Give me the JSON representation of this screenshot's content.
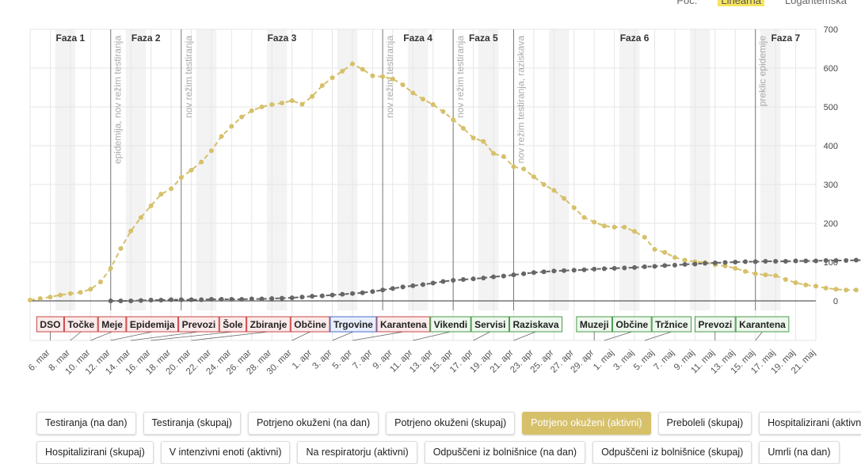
{
  "scale_switch": [
    "Poč.",
    "Linearna",
    "Logaritemska"
  ],
  "scale_active": 1,
  "buttons_row1": [
    "Testiranja (na dan)",
    "Testiranja (skupaj)",
    "Potrjeno okuženi (na dan)",
    "Potrjeno okuženi (skupaj)",
    "Potrjeno okuženi (aktivni)",
    "Preboleli (skupaj)",
    "Hospitalizirani (aktivni)"
  ],
  "buttons_row2": [
    "Hospitalizirani (skupaj)",
    "V intenzivni enoti (aktivni)",
    "Na respiratorju (aktivni)",
    "Odpuščeni iz bolnišnice (na dan)",
    "Odpuščeni iz bolnišnice (skupaj)",
    "Umrli (na dan)"
  ],
  "active_button": "Potrjeno okuženi (aktivni)",
  "colors": {
    "active": "#d6c06a",
    "recovered": "#666666",
    "grid": "#e6e6e6",
    "band": "#f3f3f3"
  },
  "chart_data": {
    "type": "line",
    "x_start": "2020-03-04",
    "x_end": "2020-05-21",
    "ylim": [
      0,
      700
    ],
    "y_ticks": [
      0,
      100,
      200,
      300,
      400,
      500,
      600,
      700
    ],
    "x_tick_labels": [
      "6. mar",
      "8. mar",
      "10. mar",
      "12. mar",
      "14. mar",
      "16. mar",
      "18. mar",
      "20. mar",
      "22. mar",
      "24. mar",
      "26. mar",
      "28. mar",
      "30. mar",
      "1. apr",
      "3. apr",
      "5. apr",
      "7. apr",
      "9. apr",
      "11. apr",
      "13. apr",
      "15. apr",
      "17. apr",
      "19. apr",
      "21. apr",
      "23. apr",
      "25. apr",
      "27. apr",
      "29. apr",
      "1. maj",
      "3. maj",
      "5. maj",
      "7. maj",
      "9. maj",
      "11. maj",
      "13. maj",
      "15. maj",
      "17. maj",
      "19. maj",
      "21. maj"
    ],
    "phases": [
      {
        "label": "Faza 1",
        "start": "2020-03-04",
        "end": "2020-03-12"
      },
      {
        "label": "Faza 2",
        "start": "2020-03-12",
        "end": "2020-03-19"
      },
      {
        "label": "Faza 3",
        "start": "2020-03-19",
        "end": "2020-04-08"
      },
      {
        "label": "Faza 4",
        "start": "2020-04-08",
        "end": "2020-04-15"
      },
      {
        "label": "Faza 5",
        "start": "2020-04-15",
        "end": "2020-04-21"
      },
      {
        "label": "Faza 6",
        "start": "2020-04-21",
        "end": "2020-05-15"
      },
      {
        "label": "Faza 7",
        "start": "2020-05-15",
        "end": "2020-05-21"
      }
    ],
    "phase_annotations": [
      {
        "date": "2020-03-12",
        "text": "epidemija, nov režim testiranja"
      },
      {
        "date": "2020-03-19",
        "text": "nov režim testiranja"
      },
      {
        "date": "2020-04-08",
        "text": "nov režim testiranja"
      },
      {
        "date": "2020-04-15",
        "text": "nov režim testiranja"
      },
      {
        "date": "2020-04-21",
        "text": "nov režim testiranja, raziskava"
      },
      {
        "date": "2020-05-15",
        "text": "preklic epidemije"
      }
    ],
    "measures": [
      {
        "label": "DSO",
        "date": "2020-03-06",
        "row": 0
      },
      {
        "label": "Točke",
        "date": "2020-03-08",
        "row": 0
      },
      {
        "label": "Meje",
        "date": "2020-03-10",
        "row": 0
      },
      {
        "label": "Epidemija",
        "date": "2020-03-12",
        "row": 0
      },
      {
        "label": "Prevozi",
        "date": "2020-03-14",
        "row": 0
      },
      {
        "label": "Šole",
        "date": "2020-03-16",
        "row": 0
      },
      {
        "label": "Zbiranje",
        "date": "2020-03-20",
        "row": 0
      },
      {
        "label": "Občine",
        "date": "2020-03-30",
        "row": 0
      },
      {
        "label": "Trgovine",
        "date": "2020-04-03",
        "row": 0
      },
      {
        "label": "Karantena",
        "date": "2020-04-05",
        "row": 0
      },
      {
        "label": "Vikendi",
        "date": "2020-04-11",
        "row": 0
      },
      {
        "label": "Servisi",
        "date": "2020-04-17",
        "row": 0
      },
      {
        "label": "Raziskava",
        "date": "2020-04-21",
        "row": 0
      },
      {
        "label": "Muzeji",
        "date": "2020-04-29",
        "row": 0
      },
      {
        "label": "Občine",
        "date": "2020-04-30",
        "row": 0
      },
      {
        "label": "Tržnice",
        "date": "2020-05-04",
        "row": 0
      },
      {
        "label": "Prevozi",
        "date": "2020-05-11",
        "row": 0
      },
      {
        "label": "Karantena",
        "date": "2020-05-15",
        "row": 0
      }
    ],
    "series": [
      {
        "name": "Potrjeno okuženi (aktivni)",
        "start": "2020-03-04",
        "values": [
          2,
          6,
          10,
          15,
          19,
          22,
          30,
          49,
          84,
          135,
          180,
          215,
          245,
          275,
          289,
          318,
          337,
          358,
          387,
          424,
          450,
          474,
          490,
          500,
          506,
          510,
          516,
          507,
          527,
          555,
          575,
          592,
          611,
          597,
          580,
          578,
          572,
          557,
          536,
          520,
          506,
          488,
          467,
          445,
          420,
          411,
          380,
          372,
          346,
          340,
          320,
          300,
          285,
          264,
          240,
          215,
          203,
          193,
          190,
          190,
          179,
          164,
          133,
          125,
          112,
          105,
          101,
          99,
          93,
          90,
          84,
          76,
          70,
          67,
          65,
          55,
          47,
          41,
          38,
          33,
          30,
          28,
          28,
          27,
          25
        ]
      },
      {
        "name": "Preboleli (skupaj)",
        "start": "2020-03-12",
        "values": [
          0,
          0,
          0,
          1,
          2,
          2,
          3,
          3,
          3,
          3,
          4,
          4,
          4,
          4,
          5,
          5,
          6,
          7,
          8,
          10,
          12,
          13,
          15,
          17,
          19,
          21,
          24,
          28,
          32,
          36,
          39,
          42,
          46,
          50,
          53,
          55,
          57,
          59,
          62,
          64,
          67,
          70,
          73,
          75,
          77,
          78,
          79,
          80,
          82,
          83,
          84,
          85,
          86,
          88,
          89,
          91,
          92,
          94,
          95,
          97,
          98,
          99,
          100,
          101,
          101,
          102,
          102,
          102,
          103,
          103,
          103,
          104,
          104,
          104,
          105,
          105,
          105,
          106,
          106
        ]
      }
    ]
  }
}
